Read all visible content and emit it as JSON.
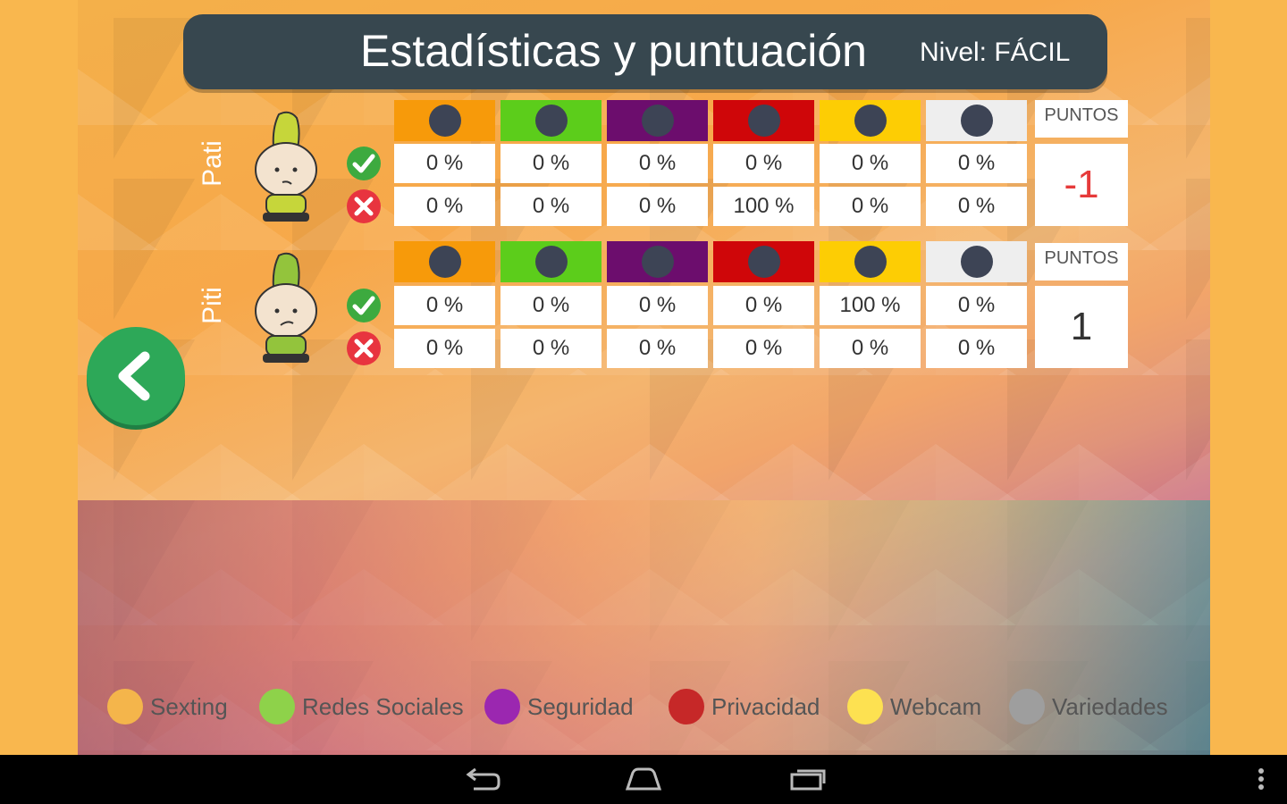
{
  "header": {
    "title": "Estadísticas y puntuación",
    "level": "Nivel: FÁCIL"
  },
  "colors": {
    "sexting": "#f79a0a",
    "redes_sociales": "#5ccd1b",
    "seguridad": "#6c0d6d",
    "privacidad": "#cf0609",
    "webcam": "#fdcd04",
    "variedades": "#eeeeee"
  },
  "players": [
    {
      "name": "Pati",
      "correct": [
        "0 %",
        "0 %",
        "0 %",
        "0 %",
        "0 %",
        "0 %"
      ],
      "wrong": [
        "0 %",
        "0 %",
        "0 %",
        "100 %",
        "0 %",
        "0 %"
      ],
      "points_label": "PUNTOS",
      "points": "-1"
    },
    {
      "name": "Piti",
      "correct": [
        "0 %",
        "0 %",
        "0 %",
        "0 %",
        "100 %",
        "0 %"
      ],
      "wrong": [
        "0 %",
        "0 %",
        "0 %",
        "0 %",
        "0 %",
        "0 %"
      ],
      "points_label": "PUNTOS",
      "points": "1"
    }
  ],
  "legend": [
    {
      "label": "Sexting",
      "color": "#f4b54b"
    },
    {
      "label": "Redes Sociales",
      "color": "#8ed24a"
    },
    {
      "label": "Seguridad",
      "color": "#9b27b0"
    },
    {
      "label": "Privacidad",
      "color": "#c62828"
    },
    {
      "label": "Webcam",
      "color": "#fde151"
    },
    {
      "label": "Variedades",
      "color": "#9e9e9e"
    }
  ],
  "icons": {
    "back": "chevron-left-icon",
    "correct": "check-circle-icon",
    "wrong": "close-circle-icon",
    "nav": [
      "back-nav-icon",
      "home-nav-icon",
      "recents-nav-icon",
      "overflow-menu-icon"
    ]
  }
}
